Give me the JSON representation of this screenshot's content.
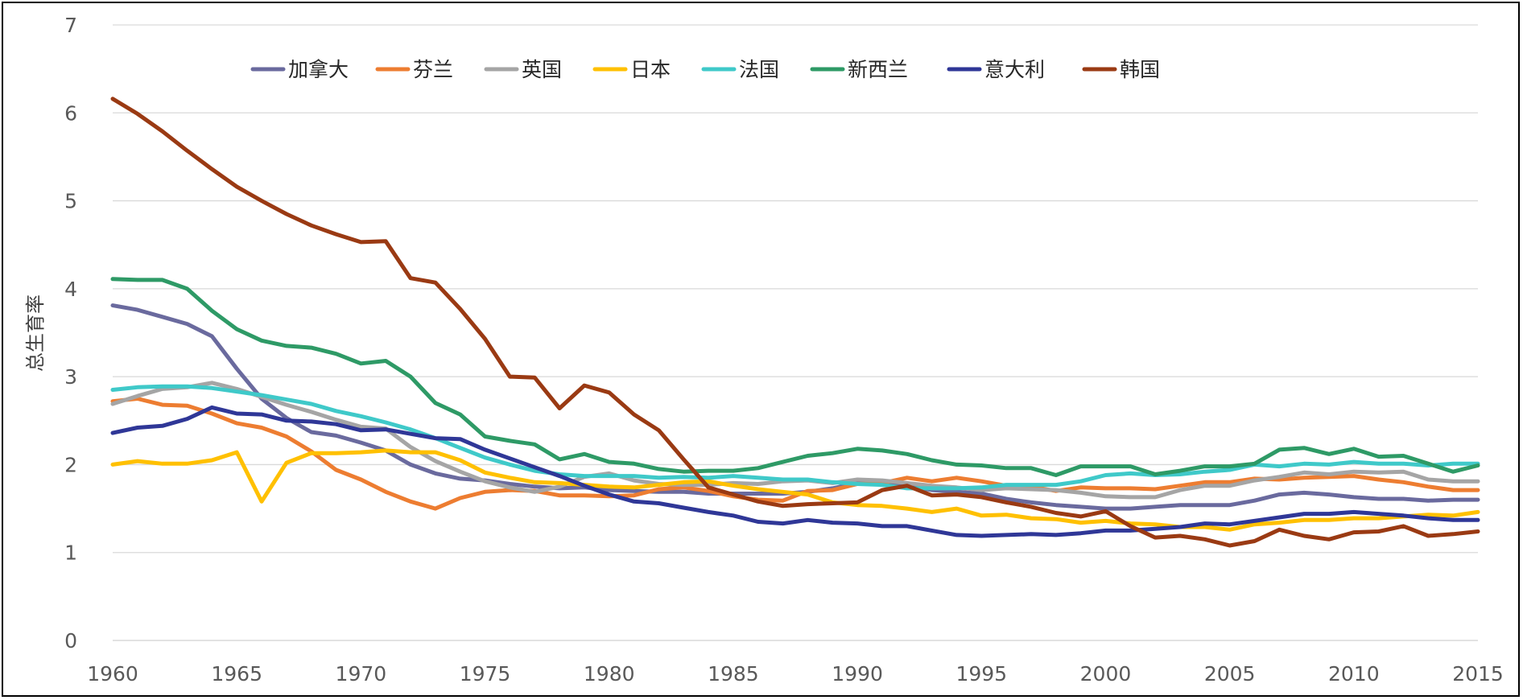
{
  "chart_data": {
    "type": "line",
    "title": "",
    "xlabel": "",
    "ylabel": "总生育率",
    "xlim": [
      1960,
      2015
    ],
    "ylim": [
      0,
      7
    ],
    "x_ticks": [
      "1960",
      "1965",
      "1970",
      "1975",
      "1980",
      "1985",
      "1990",
      "1995",
      "2000",
      "2005",
      "2010",
      "2015"
    ],
    "y_ticks": [
      "0",
      "1",
      "2",
      "3",
      "4",
      "5",
      "6",
      "7"
    ],
    "grid": "horizontal",
    "legend": "top",
    "x": [
      1960,
      1961,
      1962,
      1963,
      1964,
      1965,
      1966,
      1967,
      1968,
      1969,
      1970,
      1971,
      1972,
      1973,
      1974,
      1975,
      1976,
      1977,
      1978,
      1979,
      1980,
      1981,
      1982,
      1983,
      1984,
      1985,
      1986,
      1987,
      1988,
      1989,
      1990,
      1991,
      1992,
      1993,
      1994,
      1995,
      1996,
      1997,
      1998,
      1999,
      2000,
      2001,
      2002,
      2003,
      2004,
      2005,
      2006,
      2007,
      2008,
      2009,
      2010,
      2011,
      2012,
      2013,
      2014,
      2015
    ],
    "series": [
      {
        "name": "加拿大",
        "color": "#6a6a9e",
        "values": [
          3.81,
          3.76,
          3.68,
          3.6,
          3.46,
          3.09,
          2.75,
          2.53,
          2.37,
          2.33,
          2.25,
          2.16,
          2.0,
          1.9,
          1.84,
          1.82,
          1.78,
          1.75,
          1.73,
          1.74,
          1.71,
          1.7,
          1.69,
          1.69,
          1.67,
          1.67,
          1.67,
          1.67,
          1.69,
          1.73,
          1.79,
          1.79,
          1.76,
          1.71,
          1.69,
          1.67,
          1.61,
          1.57,
          1.54,
          1.52,
          1.5,
          1.5,
          1.52,
          1.54,
          1.54,
          1.54,
          1.59,
          1.66,
          1.68,
          1.66,
          1.63,
          1.61,
          1.61,
          1.59,
          1.6,
          1.6
        ]
      },
      {
        "name": "芬兰",
        "color": "#ed7d31",
        "values": [
          2.72,
          2.75,
          2.68,
          2.67,
          2.58,
          2.47,
          2.42,
          2.32,
          2.15,
          1.94,
          1.83,
          1.69,
          1.58,
          1.5,
          1.62,
          1.69,
          1.71,
          1.7,
          1.65,
          1.65,
          1.64,
          1.65,
          1.72,
          1.74,
          1.7,
          1.64,
          1.6,
          1.59,
          1.7,
          1.71,
          1.78,
          1.79,
          1.85,
          1.81,
          1.85,
          1.81,
          1.76,
          1.75,
          1.7,
          1.74,
          1.73,
          1.73,
          1.72,
          1.76,
          1.8,
          1.8,
          1.84,
          1.83,
          1.85,
          1.86,
          1.87,
          1.83,
          1.8,
          1.75,
          1.71,
          1.71
        ]
      },
      {
        "name": "英国",
        "color": "#a5a5a5",
        "values": [
          2.69,
          2.78,
          2.86,
          2.88,
          2.93,
          2.86,
          2.77,
          2.68,
          2.6,
          2.51,
          2.43,
          2.41,
          2.2,
          2.04,
          1.92,
          1.81,
          1.74,
          1.69,
          1.75,
          1.86,
          1.9,
          1.82,
          1.78,
          1.77,
          1.77,
          1.79,
          1.78,
          1.81,
          1.82,
          1.79,
          1.83,
          1.82,
          1.79,
          1.76,
          1.74,
          1.71,
          1.73,
          1.72,
          1.71,
          1.68,
          1.64,
          1.63,
          1.63,
          1.71,
          1.76,
          1.76,
          1.82,
          1.86,
          1.91,
          1.89,
          1.92,
          1.91,
          1.92,
          1.83,
          1.81,
          1.81
        ]
      },
      {
        "name": "日本",
        "color": "#ffc000",
        "values": [
          2.0,
          2.04,
          2.01,
          2.01,
          2.05,
          2.14,
          1.58,
          2.02,
          2.13,
          2.13,
          2.14,
          2.16,
          2.14,
          2.14,
          2.05,
          1.91,
          1.85,
          1.8,
          1.79,
          1.77,
          1.75,
          1.74,
          1.77,
          1.8,
          1.81,
          1.76,
          1.72,
          1.69,
          1.66,
          1.57,
          1.54,
          1.53,
          1.5,
          1.46,
          1.5,
          1.42,
          1.43,
          1.39,
          1.38,
          1.34,
          1.36,
          1.33,
          1.32,
          1.29,
          1.29,
          1.26,
          1.32,
          1.34,
          1.37,
          1.37,
          1.39,
          1.39,
          1.41,
          1.43,
          1.42,
          1.46
        ]
      },
      {
        "name": "法国",
        "color": "#3fc9c9",
        "values": [
          2.85,
          2.88,
          2.89,
          2.89,
          2.87,
          2.83,
          2.79,
          2.74,
          2.69,
          2.61,
          2.55,
          2.48,
          2.4,
          2.3,
          2.19,
          2.08,
          2.0,
          1.93,
          1.89,
          1.87,
          1.87,
          1.87,
          1.85,
          1.86,
          1.85,
          1.87,
          1.85,
          1.83,
          1.83,
          1.8,
          1.78,
          1.77,
          1.73,
          1.73,
          1.73,
          1.74,
          1.77,
          1.77,
          1.77,
          1.81,
          1.88,
          1.9,
          1.88,
          1.89,
          1.92,
          1.94,
          2.0,
          1.98,
          2.01,
          2.0,
          2.03,
          2.01,
          2.01,
          1.99,
          2.01,
          2.01
        ]
      },
      {
        "name": "新西兰",
        "color": "#2e9a66",
        "values": [
          4.11,
          4.1,
          4.1,
          4.0,
          3.75,
          3.54,
          3.41,
          3.35,
          3.33,
          3.26,
          3.15,
          3.18,
          3.0,
          2.7,
          2.57,
          2.32,
          2.27,
          2.23,
          2.06,
          2.12,
          2.03,
          2.01,
          1.95,
          1.92,
          1.93,
          1.93,
          1.96,
          2.03,
          2.1,
          2.13,
          2.18,
          2.16,
          2.12,
          2.05,
          2.0,
          1.99,
          1.96,
          1.96,
          1.88,
          1.98,
          1.98,
          1.98,
          1.89,
          1.93,
          1.98,
          1.98,
          2.01,
          2.17,
          2.19,
          2.12,
          2.18,
          2.09,
          2.1,
          2.01,
          1.92,
          1.99
        ]
      },
      {
        "name": "意大利",
        "color": "#2f3797",
        "values": [
          2.36,
          2.42,
          2.44,
          2.52,
          2.65,
          2.58,
          2.57,
          2.5,
          2.49,
          2.46,
          2.39,
          2.4,
          2.35,
          2.3,
          2.29,
          2.17,
          2.07,
          1.97,
          1.87,
          1.76,
          1.66,
          1.58,
          1.56,
          1.51,
          1.46,
          1.42,
          1.35,
          1.33,
          1.37,
          1.34,
          1.33,
          1.3,
          1.3,
          1.25,
          1.2,
          1.19,
          1.2,
          1.21,
          1.2,
          1.22,
          1.25,
          1.25,
          1.27,
          1.29,
          1.33,
          1.32,
          1.36,
          1.4,
          1.44,
          1.44,
          1.46,
          1.44,
          1.42,
          1.39,
          1.37,
          1.37
        ]
      },
      {
        "name": "韩国",
        "color": "#9a3a13",
        "values": [
          6.16,
          5.99,
          5.79,
          5.57,
          5.36,
          5.16,
          5.0,
          4.85,
          4.72,
          4.62,
          4.53,
          4.54,
          4.12,
          4.07,
          3.77,
          3.43,
          3.0,
          2.99,
          2.64,
          2.9,
          2.82,
          2.57,
          2.39,
          2.06,
          1.74,
          1.66,
          1.58,
          1.53,
          1.55,
          1.56,
          1.57,
          1.71,
          1.76,
          1.65,
          1.66,
          1.63,
          1.57,
          1.52,
          1.45,
          1.41,
          1.47,
          1.3,
          1.17,
          1.19,
          1.15,
          1.08,
          1.13,
          1.26,
          1.19,
          1.15,
          1.23,
          1.24,
          1.3,
          1.19,
          1.21,
          1.24
        ]
      }
    ]
  }
}
